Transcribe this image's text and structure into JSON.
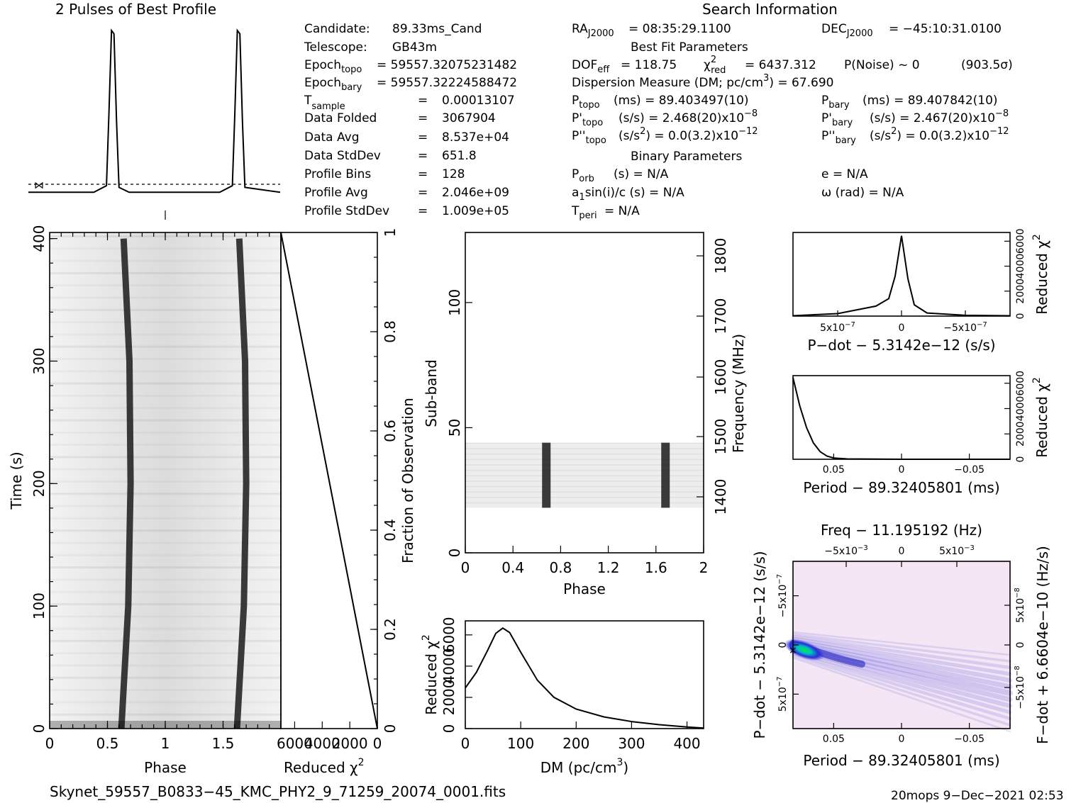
{
  "header": {
    "profile_title": "2 Pulses of Best Profile",
    "search_title": "Search Information",
    "best_fit_title": "Best Fit Parameters",
    "binary_title": "Binary Parameters",
    "filename": "Skynet_59557_B0833−45_KMC_PHY2_9_71259_20074_0001.fits",
    "footer_right": "20mops  9−Dec−2021 02:53"
  },
  "info": {
    "candidate_label": "Candidate:",
    "candidate_value": "89.33ms_Cand",
    "telescope_label": "Telescope:",
    "telescope_value": "GB43m",
    "epoch_topo_label": "Epoch",
    "epoch_topo_sub": "topo",
    "epoch_topo_value": "= 59557.32075231482",
    "epoch_bary_label": "Epoch",
    "epoch_bary_sub": "bary",
    "epoch_bary_value": "= 59557.32224588472",
    "tsample_label": "T",
    "tsample_sub": "sample",
    "tsample_eq": "=",
    "tsample_value": "0.00013107",
    "data_folded_label": "Data Folded",
    "data_folded_eq": "=",
    "data_folded_value": "3067904",
    "data_avg_label": "Data Avg",
    "data_avg_eq": "=",
    "data_avg_value": "8.537e+04",
    "data_stddev_label": "Data StdDev",
    "data_stddev_eq": "=",
    "data_stddev_value": "651.8",
    "profile_bins_label": "Profile Bins",
    "profile_bins_eq": "=",
    "profile_bins_value": "128",
    "profile_avg_label": "Profile Avg",
    "profile_avg_eq": "=",
    "profile_avg_value": "2.046e+09",
    "profile_stddev_label": "Profile StdDev",
    "profile_stddev_eq": "=",
    "profile_stddev_value": "1.009e+05"
  },
  "search": {
    "ra_label": "RA",
    "ra_sub": "J2000",
    "ra_value": "= 08:35:29.1100",
    "dec_label": "DEC",
    "dec_sub": "J2000",
    "dec_value": "= −45:10:31.0100",
    "dof_label": "DOF",
    "dof_sub": "eff",
    "dof_value": "= 118.75",
    "chi_label": "χ",
    "chi_sup": "2",
    "chi_sub": "red",
    "chi_value": "= 6437.312",
    "pnoise_text": "P(Noise) ~ 0",
    "sigma_text": "(903.5σ)",
    "dm_text": "Dispersion Measure (DM; pc/cm",
    "dm_sup": "3",
    "dm_value": ") = 67.690",
    "ptopo_label": "P",
    "ptopo_sub": "topo",
    "ptopo_value": "(ms) =  89.403497(10)",
    "pbary_label": "P",
    "pbary_sub": "bary",
    "pbary_value": "(ms) =  89.407842(10)",
    "pdtopo_label": "P'",
    "pdtopo_sub": "topo",
    "pdtopo_value": "(s/s) =  2.468(20)x10",
    "pdtopo_exp": "−8",
    "pdbary_label": "P'",
    "pdbary_sub": "bary",
    "pdbary_value": "(s/s) =  2.467(20)x10",
    "pdbary_exp": "−8",
    "pddtopo_label": "P''",
    "pddtopo_sub": "topo",
    "pddtopo_value": "(s/s",
    "pddtopo_sup": "2",
    "pddtopo_tail": ") = 0.0(3.2)x10",
    "pddtopo_exp": "−12",
    "pddbary_label": "P''",
    "pddbary_sub": "bary",
    "pddbary_value": "(s/s",
    "pddbary_sup": "2",
    "pddbary_tail": ") = 0.0(3.2)x10",
    "pddbary_exp": "−12",
    "porb_label": "P",
    "porb_sub": "orb",
    "porb_value": "(s) = N/A",
    "e_text": "e = N/A",
    "asini_label": "a",
    "asini_sub": "1",
    "asini_value": "sin(i)/c (s) = N/A",
    "omega_text": "ω (rad) = N/A",
    "tperi_label": "T",
    "tperi_sub": "peri",
    "tperi_value": "= N/A"
  },
  "colors": {
    "ink": "#000000",
    "grayscale_dark": "#1a1a1a",
    "ppdot_background": "#f4e6f4",
    "ppdot_blue": "#2b2bd9",
    "ppdot_peak": "#00e64d"
  },
  "chart_data": [
    {
      "type": "line",
      "name": "profile",
      "title": "2 Pulses of Best Profile",
      "x": [
        0.0,
        0.52,
        0.62,
        0.64,
        0.66,
        0.68,
        0.7,
        0.72,
        0.8,
        1.52,
        1.62,
        1.64,
        1.66,
        1.68,
        1.7,
        1.72,
        2.0
      ],
      "y": [
        0.02,
        0.02,
        0.06,
        0.5,
        1.0,
        0.98,
        0.45,
        0.05,
        0.02,
        0.02,
        0.06,
        0.5,
        1.0,
        0.98,
        0.45,
        0.05,
        0.02
      ],
      "ylim": [
        0,
        1
      ]
    },
    {
      "type": "heatmap",
      "name": "time-vs-phase",
      "xlabel": "Phase",
      "ylabel": "Time (s)",
      "xlim": [
        0,
        2
      ],
      "ylim": [
        0,
        405
      ],
      "xticks": [
        "0",
        "0.5",
        "1",
        "1.5"
      ],
      "yticks": [
        "0",
        "100",
        "200",
        "300",
        "400"
      ],
      "pulse_track_time": [
        0,
        100,
        200,
        300,
        400
      ],
      "pulse_track_phase": [
        0.62,
        0.68,
        0.7,
        0.69,
        0.64
      ]
    },
    {
      "type": "line",
      "name": "cumulative-reduced-chi2",
      "xlabel": "Reduced χ",
      "xlabel_sup": "2",
      "ylabel": "Fraction of Observation",
      "xticks": [
        "6000",
        "4000",
        "2000",
        "0"
      ],
      "yticks": [
        "0",
        "0.2",
        "0.4",
        "0.6",
        "0.8",
        "1"
      ],
      "x": [
        0,
        700,
        1400,
        2100,
        2800,
        3500,
        4200,
        4900,
        5600,
        6300,
        7000
      ],
      "y": [
        0.0,
        0.1,
        0.2,
        0.3,
        0.4,
        0.5,
        0.6,
        0.7,
        0.8,
        0.9,
        1.0
      ]
    },
    {
      "type": "heatmap",
      "name": "subband-vs-phase",
      "xlabel": "Phase",
      "ylabel": "Sub-band",
      "ylabel2": "Frequency (MHz)",
      "xlim": [
        0,
        2
      ],
      "ylim": [
        0,
        128
      ],
      "xticks": [
        "0",
        "0.4",
        "0.8",
        "1.2",
        "1.6",
        "2"
      ],
      "yticks": [
        "0",
        "50",
        "100"
      ],
      "freq_ticks": [
        "1400",
        "1500",
        "1600",
        "1700",
        "1800"
      ],
      "signal_subbands": [
        18,
        44
      ],
      "pulse_phases": [
        0.68,
        1.68
      ]
    },
    {
      "type": "line",
      "name": "dm-curve",
      "xlabel": "DM (pc/cm",
      "xlabel_sup": "3",
      "xlabel_tail": ")",
      "ylabel": "Reduced χ",
      "ylabel_sup": "2",
      "xticks": [
        "0",
        "100",
        "200",
        "300",
        "400"
      ],
      "yticks": [
        "0",
        "2000",
        "4000",
        "6000"
      ],
      "x": [
        0,
        20,
        40,
        55,
        67.69,
        80,
        100,
        130,
        160,
        200,
        250,
        300,
        350,
        400,
        430
      ],
      "y": [
        2600,
        3600,
        5000,
        6100,
        6437,
        6150,
        4900,
        3100,
        2000,
        1250,
        750,
        450,
        250,
        100,
        30
      ]
    },
    {
      "type": "line",
      "name": "pdot-curve",
      "xlabel": "P−dot − 5.3142e−12 (s/s)",
      "ylabel": "Reduced χ",
      "ylabel_sup": "2",
      "xticks": [
        "5x10",
        "0",
        "−5x10"
      ],
      "xtick_exp": "−7",
      "yticks": [
        "0",
        "2000",
        "4000",
        "6000"
      ],
      "x": [
        8.5e-07,
        5e-07,
        2e-07,
        1e-07,
        5e-08,
        0,
        -5e-08,
        -1e-07,
        -2e-07,
        -5e-07,
        -8.5e-07
      ],
      "y": [
        30,
        200,
        800,
        1400,
        3200,
        6437,
        3000,
        900,
        250,
        60,
        30
      ]
    },
    {
      "type": "line",
      "name": "period-curve",
      "xlabel": "Period − 89.32405801 (ms)",
      "ylabel": "Reduced χ",
      "ylabel_sup": "2",
      "xticks": [
        "0.05",
        "0",
        "−0.05"
      ],
      "yticks": [
        "0",
        "2000",
        "4000",
        "6000"
      ],
      "x": [
        0.08,
        0.075,
        0.07,
        0.065,
        0.06,
        0.055,
        0.05,
        0.04,
        0.0,
        -0.08
      ],
      "y": [
        6437,
        4200,
        2500,
        1300,
        600,
        250,
        100,
        30,
        0,
        0
      ]
    },
    {
      "type": "heatmap",
      "name": "period-pdot-plane",
      "title": "Freq − 11.195192 (Hz)",
      "xlabel": "Period − 89.32405801 (ms)",
      "ylabel": "P−dot − 5.3142e−12 (s/s)",
      "ylabel2": "F−dot + 6.6604e−10 (Hz/s)",
      "xticks": [
        "0.05",
        "0",
        "−0.05"
      ],
      "top_ticks": [
        "−5x10",
        "0",
        "5x10"
      ],
      "top_exp": "−3",
      "yticks": [
        "−5x10",
        "0",
        "5x10"
      ],
      "ytick_exp": "−7",
      "y2ticks": [
        "5x10",
        "0",
        "−5x10"
      ],
      "y2tick_exp": "−8",
      "peak": [
        0.08,
        0
      ]
    }
  ]
}
